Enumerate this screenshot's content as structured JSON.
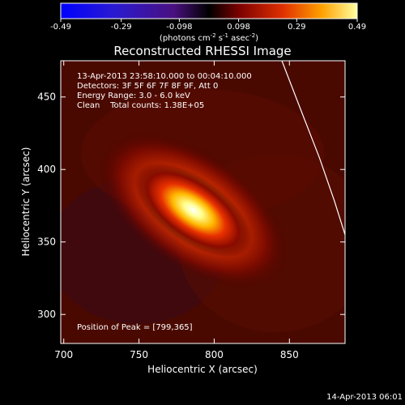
{
  "colorbar": {
    "tick_labels": [
      "-0.49",
      "-0.29",
      "-0.098",
      "0.098",
      "0.29",
      "0.49"
    ],
    "range": [
      -0.49,
      0.49
    ],
    "units_prefix": "(photons cm",
    "units_exp1": "-2",
    "units_mid": " s",
    "units_exp2": "-1",
    "units_mid2": " asec",
    "units_exp3": "-2",
    "units_suffix": ")"
  },
  "chart_data": {
    "type": "heatmap",
    "title": "Reconstructed RHESSI Image",
    "xlabel": "Heliocentric X (arcsec)",
    "ylabel": "Heliocentric Y (arcsec)",
    "xlim": [
      698,
      887
    ],
    "ylim": [
      280,
      475
    ],
    "x_ticks": [
      700,
      750,
      800,
      850
    ],
    "y_ticks": [
      300,
      350,
      400,
      450
    ],
    "x_tick_labels": [
      "700",
      "750",
      "800",
      "850"
    ],
    "y_tick_labels": [
      "300",
      "350",
      "400",
      "450"
    ],
    "peak": [
      799,
      365
    ],
    "source": {
      "center": [
        786,
        372
      ],
      "major_sigma": 30,
      "minor_sigma": 12,
      "angle_deg": 35
    },
    "annotations": [
      "13-Apr-2013 23:58:10.000 to 00:04:10.000",
      "Detectors: 3F 5F 6F 7F 8F 9F, Att 0",
      "Energy Range: 3.0 - 6.0 keV",
      "Clean    Total counts: 1.38E+05"
    ],
    "peak_label": "Position of Peak = [799,365]",
    "limb_points": [
      [
        845,
        475
      ],
      [
        858,
        440
      ],
      [
        870,
        408
      ],
      [
        880,
        378
      ],
      [
        887,
        355
      ]
    ]
  },
  "footer": {
    "timestamp": "14-Apr-2013 06:01"
  }
}
